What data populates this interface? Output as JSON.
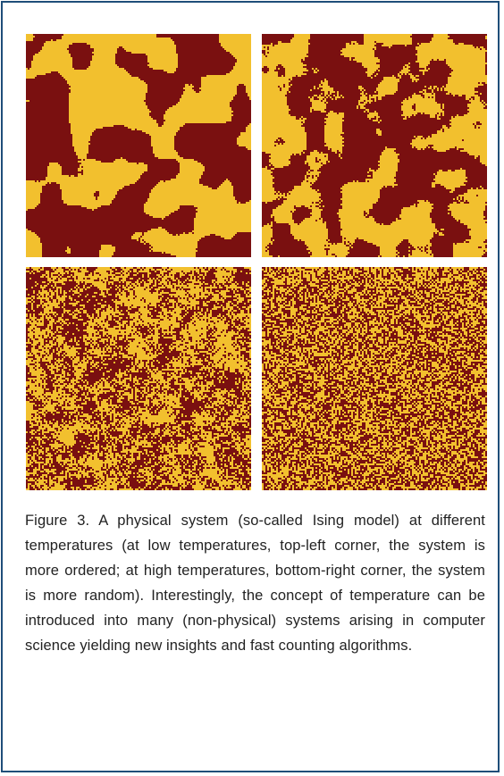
{
  "figure": {
    "panels": [
      {
        "position": "top-left",
        "temperature_level": "lowest",
        "pattern": "large ordered domains"
      },
      {
        "position": "top-right",
        "temperature_level": "low",
        "pattern": "medium domains"
      },
      {
        "position": "bottom-left",
        "temperature_level": "high",
        "pattern": "fine domains"
      },
      {
        "position": "bottom-right",
        "temperature_level": "highest",
        "pattern": "random noise"
      }
    ],
    "colors": {
      "spin_down": "#7a1010",
      "spin_up": "#f2c02e",
      "border": "#1f4e79"
    },
    "caption": "Figure 3.  A physical system (so-called Ising model) at different temperatures (at low temperatures, top-left corner,  the system is more ordered; at high temperatures, bottom-right corner, the system is more random).  Interestingly,  the  concept  of temperature can be introduced into many (non-physical) systems arising in computer science yielding new insights and fast counting algorithms."
  }
}
